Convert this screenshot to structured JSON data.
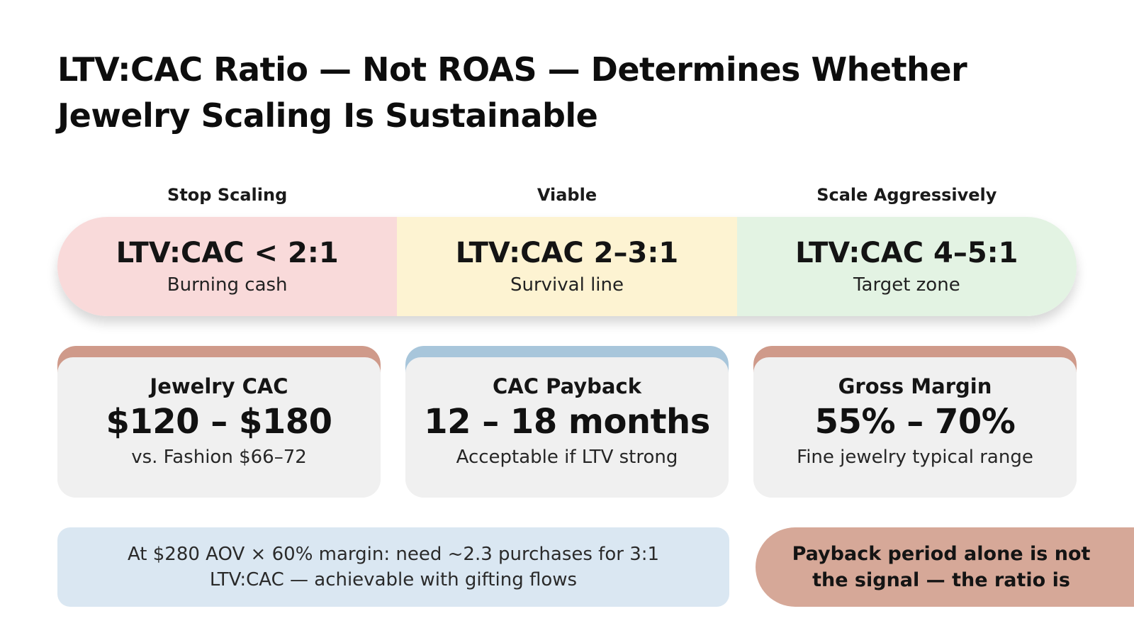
{
  "title": "LTV:CAC Ratio — Not ROAS — Determines Whether Jewelry Scaling Is Sustainable",
  "zones": [
    {
      "label": "Stop Scaling",
      "ratio": "LTV:CAC < 2:1",
      "description": "Burning cash",
      "color": "#f9dada"
    },
    {
      "label": "Viable",
      "ratio": "LTV:CAC 2–3:1",
      "description": "Survival line",
      "color": "#fdf3d2"
    },
    {
      "label": "Scale Aggressively",
      "ratio": "LTV:CAC 4–5:1",
      "description": "Target zone",
      "color": "#e3f3e3"
    }
  ],
  "cards": [
    {
      "label": "Jewelry CAC",
      "value": "$120 – $180",
      "note": "vs. Fashion $66–72",
      "accent": "#cf9a8a"
    },
    {
      "label": "CAC Payback",
      "value": "12 – 18 months",
      "note": "Acceptable if LTV strong",
      "accent": "#a8c6db"
    },
    {
      "label": "Gross Margin",
      "value": "55% – 70%",
      "note": "Fine jewelry typical range",
      "accent": "#cf9a8a"
    }
  ],
  "note": "At $280 AOV × 60% margin: need ~2.3 purchases for 3:1 LTV:CAC — achievable with gifting flows",
  "callout": "Payback period alone is not the signal — the ratio is"
}
